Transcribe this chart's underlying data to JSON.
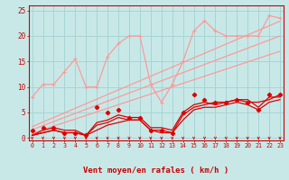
{
  "x": [
    0,
    1,
    2,
    3,
    4,
    5,
    6,
    7,
    8,
    9,
    10,
    11,
    12,
    13,
    14,
    15,
    16,
    17,
    18,
    19,
    20,
    21,
    22,
    23
  ],
  "trend1": [
    2.2,
    3.1,
    4.0,
    4.9,
    5.8,
    6.7,
    7.6,
    8.5,
    9.4,
    10.3,
    11.2,
    12.1,
    13.0,
    13.9,
    14.8,
    15.7,
    16.6,
    17.5,
    18.4,
    19.3,
    20.2,
    21.1,
    22.0,
    22.9
  ],
  "trend2": [
    1.6,
    2.4,
    3.2,
    4.0,
    4.8,
    5.6,
    6.4,
    7.2,
    8.0,
    8.8,
    9.6,
    10.4,
    11.2,
    12.0,
    12.8,
    13.6,
    14.4,
    15.2,
    16.0,
    16.8,
    17.6,
    18.4,
    19.2,
    20.0
  ],
  "trend3": [
    0.9,
    1.6,
    2.3,
    3.0,
    3.7,
    4.4,
    5.1,
    5.8,
    6.5,
    7.2,
    7.9,
    8.6,
    9.3,
    10.0,
    10.7,
    11.4,
    12.1,
    12.8,
    13.5,
    14.2,
    14.9,
    15.6,
    16.3,
    17.0
  ],
  "salmon_jagged": [
    8,
    10.5,
    10.5,
    13,
    15.5,
    10,
    10,
    16,
    18.5,
    20,
    20,
    10.5,
    7,
    10.5,
    15,
    21,
    23,
    21,
    20,
    20,
    20,
    20,
    24,
    23.5
  ],
  "red_trend1": [
    0.5,
    1.0,
    1.5,
    1.0,
    1.0,
    0.5,
    2.5,
    3.0,
    4.0,
    3.5,
    3.5,
    1.5,
    1.5,
    1.0,
    4.5,
    6.0,
    6.5,
    7.0,
    7.0,
    7.5,
    7.0,
    7.0,
    7.5,
    8.5
  ],
  "red_trend2": [
    0.5,
    1.5,
    2.0,
    1.5,
    1.5,
    0.5,
    3.0,
    3.5,
    4.5,
    4.0,
    4.0,
    2.0,
    2.0,
    1.5,
    5.0,
    6.5,
    7.0,
    6.5,
    7.0,
    7.5,
    7.5,
    6.0,
    8.0,
    8.0
  ],
  "red_trend3": [
    0.5,
    1.0,
    1.5,
    1.0,
    1.0,
    0.5,
    1.5,
    2.5,
    3.0,
    3.5,
    3.5,
    1.5,
    1.0,
    1.0,
    3.5,
    5.5,
    6.0,
    6.0,
    6.5,
    7.0,
    6.5,
    5.5,
    7.0,
    7.5
  ],
  "red_jagged": [
    1.5,
    2.0,
    2.0,
    1.0,
    1.0,
    0.5,
    6.0,
    5.0,
    5.5,
    4.0,
    4.0,
    1.5,
    1.5,
    1.0,
    5.0,
    8.5,
    7.5,
    7.0,
    7.0,
    7.5,
    7.0,
    5.5,
    8.5,
    8.5
  ],
  "bg_color": "#c8e8e8",
  "grid_color": "#a8d4d4",
  "salmon_color": "#ff9999",
  "red_color": "#dd0000",
  "xlabel": "Vent moyen/en rafales ( km/h )",
  "xlabel_color": "#cc0000",
  "tick_color": "#cc0000",
  "xlim": [
    -0.3,
    23.3
  ],
  "ylim": [
    -0.5,
    26
  ],
  "yticks": [
    0,
    5,
    10,
    15,
    20,
    25
  ]
}
